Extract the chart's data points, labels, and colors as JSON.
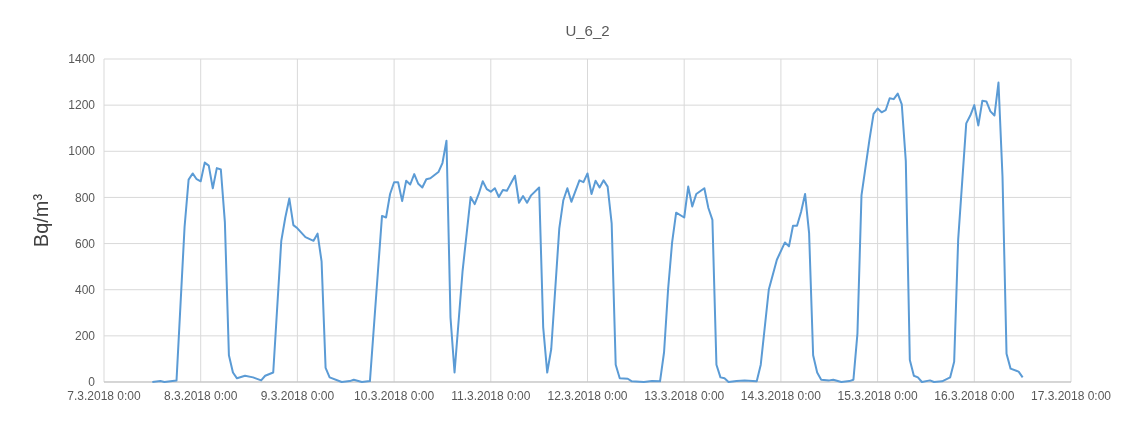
{
  "chart_data": {
    "type": "line",
    "title": "U_6_2",
    "ylabel": "Bq/m³",
    "x": [
      "2018-03-07T12:00",
      "2018-03-07T14:00",
      "2018-03-07T15:00",
      "2018-03-07T18:00",
      "2018-03-07T20:00",
      "2018-03-07T21:00",
      "2018-03-07T22:00",
      "2018-03-07T23:00",
      "2018-03-08T00:00",
      "2018-03-08T01:00",
      "2018-03-08T02:00",
      "2018-03-08T03:00",
      "2018-03-08T04:00",
      "2018-03-08T05:00",
      "2018-03-08T06:00",
      "2018-03-08T07:00",
      "2018-03-08T08:00",
      "2018-03-08T09:00",
      "2018-03-08T11:00",
      "2018-03-08T13:00",
      "2018-03-08T15:00",
      "2018-03-08T16:00",
      "2018-03-08T18:00",
      "2018-03-08T20:00",
      "2018-03-08T21:00",
      "2018-03-08T22:00",
      "2018-03-08T23:00",
      "2018-03-09T00:00",
      "2018-03-09T02:00",
      "2018-03-09T04:00",
      "2018-03-09T05:00",
      "2018-03-09T06:00",
      "2018-03-09T07:00",
      "2018-03-09T08:00",
      "2018-03-09T11:00",
      "2018-03-09T13:00",
      "2018-03-09T14:00",
      "2018-03-09T16:00",
      "2018-03-09T18:00",
      "2018-03-09T20:00",
      "2018-03-09T21:00",
      "2018-03-09T22:00",
      "2018-03-09T23:00",
      "2018-03-10T00:00",
      "2018-03-10T01:00",
      "2018-03-10T02:00",
      "2018-03-10T03:00",
      "2018-03-10T04:00",
      "2018-03-10T05:00",
      "2018-03-10T06:00",
      "2018-03-10T07:00",
      "2018-03-10T08:00",
      "2018-03-10T09:00",
      "2018-03-10T11:00",
      "2018-03-10T12:00",
      "2018-03-10T13:00",
      "2018-03-10T14:00",
      "2018-03-10T15:00",
      "2018-03-10T17:00",
      "2018-03-10T19:00",
      "2018-03-10T20:00",
      "2018-03-10T21:00",
      "2018-03-10T22:00",
      "2018-03-10T23:00",
      "2018-03-11T00:00",
      "2018-03-11T01:00",
      "2018-03-11T02:00",
      "2018-03-11T03:00",
      "2018-03-11T04:00",
      "2018-03-11T06:00",
      "2018-03-11T07:00",
      "2018-03-11T08:00",
      "2018-03-11T09:00",
      "2018-03-11T10:00",
      "2018-03-11T12:00",
      "2018-03-11T13:00",
      "2018-03-11T14:00",
      "2018-03-11T15:00",
      "2018-03-11T17:00",
      "2018-03-11T18:00",
      "2018-03-11T19:00",
      "2018-03-11T20:00",
      "2018-03-11T22:00",
      "2018-03-11T23:00",
      "2018-03-12T00:00",
      "2018-03-12T01:00",
      "2018-03-12T02:00",
      "2018-03-12T03:00",
      "2018-03-12T04:00",
      "2018-03-12T05:00",
      "2018-03-12T06:00",
      "2018-03-12T07:00",
      "2018-03-12T08:00",
      "2018-03-12T10:00",
      "2018-03-12T11:00",
      "2018-03-12T14:00",
      "2018-03-12T16:00",
      "2018-03-12T18:00",
      "2018-03-12T19:00",
      "2018-03-12T20:00",
      "2018-03-12T21:00",
      "2018-03-12T22:00",
      "2018-03-13T00:00",
      "2018-03-13T01:00",
      "2018-03-13T02:00",
      "2018-03-13T03:00",
      "2018-03-13T05:00",
      "2018-03-13T06:00",
      "2018-03-13T07:00",
      "2018-03-13T08:00",
      "2018-03-13T09:00",
      "2018-03-13T10:00",
      "2018-03-13T11:00",
      "2018-03-13T13:00",
      "2018-03-13T15:00",
      "2018-03-13T18:00",
      "2018-03-13T19:00",
      "2018-03-13T21:00",
      "2018-03-13T23:00",
      "2018-03-14T01:00",
      "2018-03-14T02:00",
      "2018-03-14T03:00",
      "2018-03-14T04:00",
      "2018-03-14T05:00",
      "2018-03-14T06:00",
      "2018-03-14T07:00",
      "2018-03-14T08:00",
      "2018-03-14T09:00",
      "2018-03-14T10:00",
      "2018-03-14T12:00",
      "2018-03-14T13:00",
      "2018-03-14T15:00",
      "2018-03-14T17:00",
      "2018-03-14T18:00",
      "2018-03-14T19:00",
      "2018-03-14T20:00",
      "2018-03-14T22:00",
      "2018-03-14T23:00",
      "2018-03-15T00:00",
      "2018-03-15T01:00",
      "2018-03-15T02:00",
      "2018-03-15T03:00",
      "2018-03-15T04:00",
      "2018-03-15T05:00",
      "2018-03-15T06:00",
      "2018-03-15T07:00",
      "2018-03-15T08:00",
      "2018-03-15T09:00",
      "2018-03-15T10:00",
      "2018-03-15T11:00",
      "2018-03-15T13:00",
      "2018-03-15T14:00",
      "2018-03-15T16:00",
      "2018-03-15T18:00",
      "2018-03-15T19:00",
      "2018-03-15T20:00",
      "2018-03-15T22:00",
      "2018-03-15T23:00",
      "2018-03-16T00:00",
      "2018-03-16T01:00",
      "2018-03-16T02:00",
      "2018-03-16T03:00",
      "2018-03-16T04:00",
      "2018-03-16T05:00",
      "2018-03-16T06:00",
      "2018-03-16T07:00",
      "2018-03-16T08:00",
      "2018-03-16T09:00",
      "2018-03-16T11:00",
      "2018-03-16T12:00"
    ],
    "series": [
      {
        "color": "#5b9bd5",
        "values": [
          0,
          4,
          0,
          7,
          673,
          877,
          904,
          879,
          870,
          951,
          938,
          840,
          927,
          921,
          693,
          116,
          41,
          16,
          27,
          20,
          7,
          27,
          41,
          612,
          713,
          795,
          680,
          666,
          628,
          612,
          643,
          523,
          61,
          20,
          0,
          4,
          10,
          0,
          4,
          482,
          720,
          713,
          815,
          866,
          866,
          784,
          872,
          856,
          901,
          859,
          843,
          879,
          883,
          910,
          949,
          1046,
          279,
          41,
          482,
          802,
          771,
          815,
          870,
          836,
          825,
          840,
          802,
          832,
          829,
          894,
          777,
          806,
          777,
          809,
          843,
          238,
          41,
          143,
          666,
          788,
          840,
          781,
          874,
          866,
          904,
          815,
          872,
          843,
          874,
          847,
          686,
          75,
          16,
          14,
          3,
          0,
          4,
          3,
          129,
          401,
          605,
          734,
          713,
          847,
          761,
          815,
          840,
          754,
          703,
          75,
          20,
          16,
          0,
          4,
          7,
          3,
          75,
          401,
          530,
          605,
          588,
          677,
          677,
          737,
          815,
          645,
          116,
          41,
          10,
          7,
          10,
          0,
          4,
          10,
          211,
          809,
          1053,
          1162,
          1185,
          1169,
          1178,
          1230,
          1226,
          1250,
          1203,
          958,
          95,
          27,
          20,
          0,
          7,
          0,
          3,
          20,
          88,
          618,
          1121,
          1155,
          1200,
          1112,
          1219,
          1216,
          1173,
          1155,
          1298,
          890,
          122,
          58,
          45,
          20
        ]
      }
    ],
    "xlim": [
      "2018-03-07T00:00",
      "2018-03-17T00:00"
    ],
    "xticks": [
      {
        "value": "2018-03-07T00:00",
        "label": "7.3.2018 0:00"
      },
      {
        "value": "2018-03-08T00:00",
        "label": "8.3.2018 0:00"
      },
      {
        "value": "2018-03-09T00:00",
        "label": "9.3.2018 0:00"
      },
      {
        "value": "2018-03-10T00:00",
        "label": "10.3.2018 0:00"
      },
      {
        "value": "2018-03-11T00:00",
        "label": "11.3.2018 0:00"
      },
      {
        "value": "2018-03-12T00:00",
        "label": "12.3.2018 0:00"
      },
      {
        "value": "2018-03-13T00:00",
        "label": "13.3.2018 0:00"
      },
      {
        "value": "2018-03-14T00:00",
        "label": "14.3.2018 0:00"
      },
      {
        "value": "2018-03-15T00:00",
        "label": "15.3.2018 0:00"
      },
      {
        "value": "2018-03-16T00:00",
        "label": "16.3.2018 0:00"
      },
      {
        "value": "2018-03-17T00:00",
        "label": "17.3.2018 0:00"
      }
    ],
    "ylim": [
      0,
      1400
    ],
    "yticks": [
      0,
      200,
      400,
      600,
      800,
      1000,
      1200,
      1400
    ],
    "grid": true,
    "marker": "none",
    "line_style": "solid"
  }
}
